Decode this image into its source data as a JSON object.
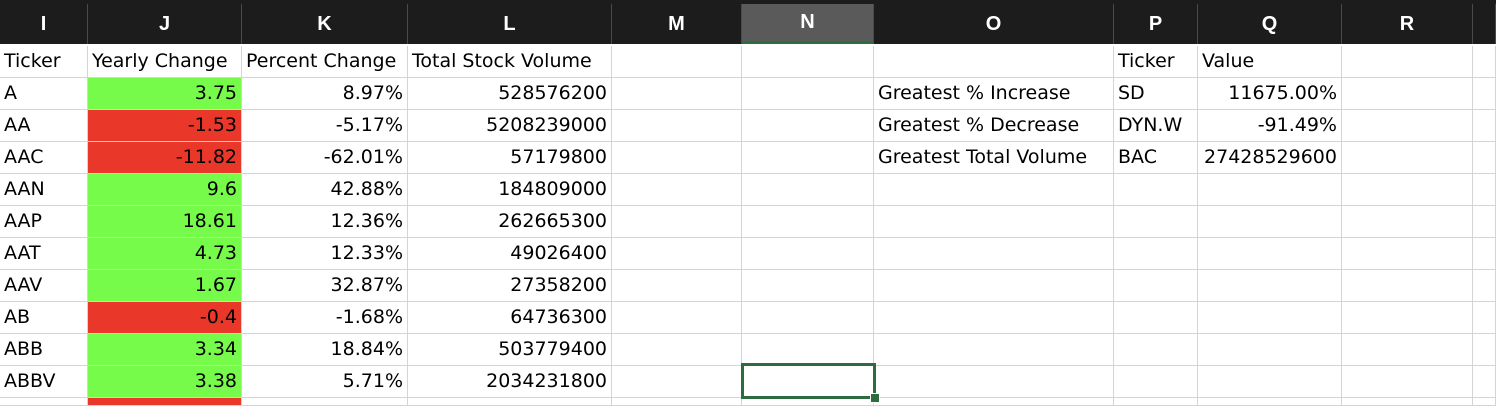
{
  "columns": [
    "I",
    "J",
    "K",
    "L",
    "M",
    "N",
    "O",
    "P",
    "Q",
    "R",
    ""
  ],
  "selected_column": "N",
  "colors": {
    "positive": "#77fb4b",
    "negative": "#e9372a",
    "header_bg": "#1c1c1c",
    "selection": "#2e6b3e"
  },
  "headers": {
    "ticker": "Ticker",
    "yearly_change": "Yearly Change",
    "percent_change": "Percent Change",
    "total_volume": "Total Stock Volume",
    "summary_ticker": "Ticker",
    "summary_value": "Value"
  },
  "rows": [
    {
      "ticker": "A",
      "yearly_change": "3.75",
      "percent_change": "8.97%",
      "volume": "528576200",
      "sign": "positive"
    },
    {
      "ticker": "AA",
      "yearly_change": "-1.53",
      "percent_change": "-5.17%",
      "volume": "5208239000",
      "sign": "negative"
    },
    {
      "ticker": "AAC",
      "yearly_change": "-11.82",
      "percent_change": "-62.01%",
      "volume": "57179800",
      "sign": "negative"
    },
    {
      "ticker": "AAN",
      "yearly_change": "9.6",
      "percent_change": "42.88%",
      "volume": "184809000",
      "sign": "positive"
    },
    {
      "ticker": "AAP",
      "yearly_change": "18.61",
      "percent_change": "12.36%",
      "volume": "262665300",
      "sign": "positive"
    },
    {
      "ticker": "AAT",
      "yearly_change": "4.73",
      "percent_change": "12.33%",
      "volume": "49026400",
      "sign": "positive"
    },
    {
      "ticker": "AAV",
      "yearly_change": "1.67",
      "percent_change": "32.87%",
      "volume": "27358200",
      "sign": "positive"
    },
    {
      "ticker": "AB",
      "yearly_change": "-0.4",
      "percent_change": "-1.68%",
      "volume": "64736300",
      "sign": "negative"
    },
    {
      "ticker": "ABB",
      "yearly_change": "3.34",
      "percent_change": "18.84%",
      "volume": "503779400",
      "sign": "positive"
    },
    {
      "ticker": "ABBV",
      "yearly_change": "3.38",
      "percent_change": "5.71%",
      "volume": "2034231800",
      "sign": "positive"
    }
  ],
  "partial_row_sign": "negative",
  "summary": [
    {
      "label": "Greatest % Increase",
      "ticker": "SD",
      "value": "11675.00%"
    },
    {
      "label": "Greatest % Decrease",
      "ticker": "DYN.W",
      "value": "-91.49%"
    },
    {
      "label": "Greatest Total Volume",
      "ticker": "BAC",
      "value": "27428529600"
    }
  ]
}
